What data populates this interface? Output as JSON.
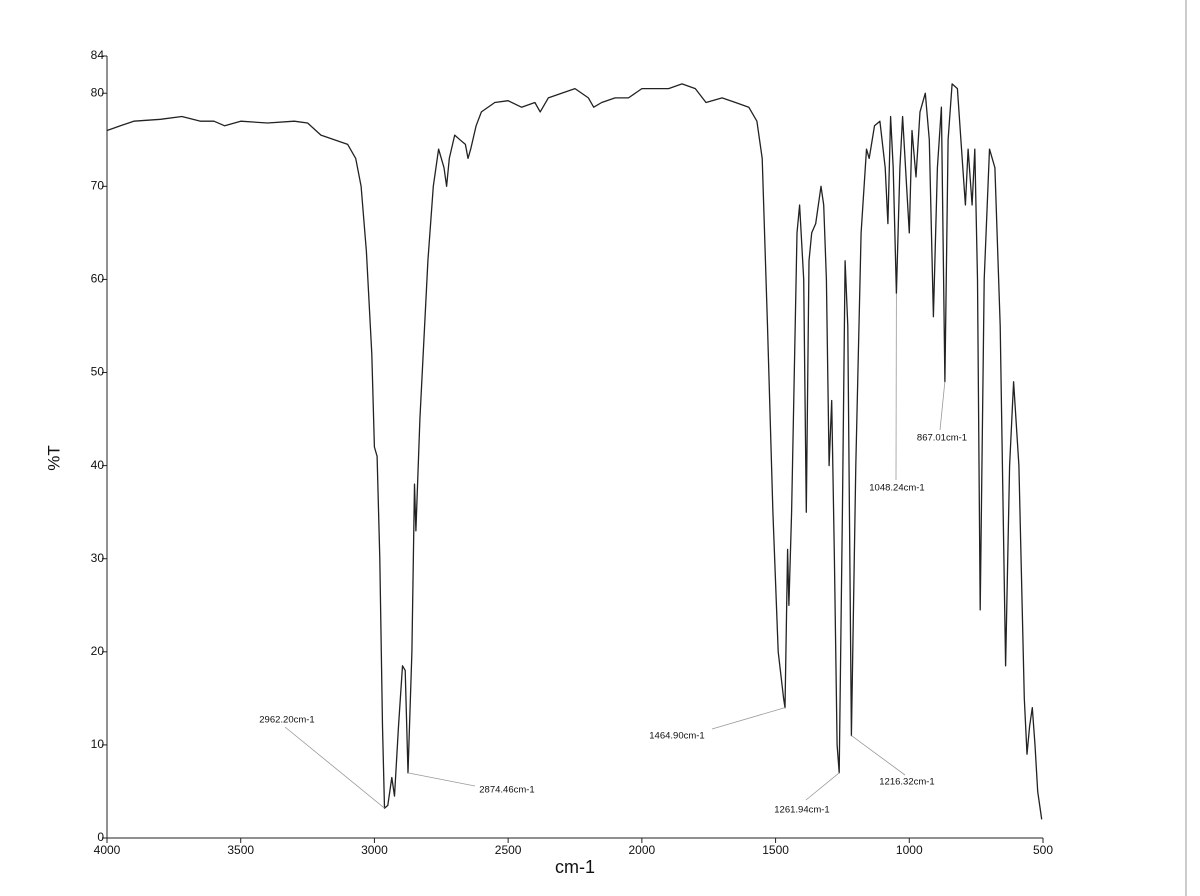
{
  "chart_data": {
    "type": "line",
    "x_label": "cm-1",
    "y_label": "%T",
    "xlim": [
      4000,
      500
    ],
    "ylim": [
      0,
      84
    ],
    "xticks": [
      4000,
      3500,
      3000,
      2500,
      2000,
      1500,
      1000,
      500
    ],
    "yticks": [
      0,
      10,
      20,
      30,
      40,
      50,
      60,
      70,
      80,
      84
    ],
    "color": "#222222",
    "x": [
      4000,
      3950,
      3900,
      3800,
      3720,
      3650,
      3600,
      3560,
      3500,
      3400,
      3300,
      3250,
      3200,
      3150,
      3100,
      3070,
      3050,
      3030,
      3010,
      3000,
      2990,
      2980,
      2970,
      2962.2,
      2950,
      2935,
      2925,
      2910,
      2895,
      2885,
      2874.46,
      2860,
      2850,
      2845,
      2830,
      2800,
      2780,
      2760,
      2740,
      2730,
      2720,
      2700,
      2680,
      2660,
      2650,
      2640,
      2620,
      2600,
      2550,
      2500,
      2450,
      2400,
      2380,
      2350,
      2300,
      2250,
      2200,
      2180,
      2150,
      2100,
      2050,
      2000,
      1950,
      1900,
      1850,
      1800,
      1760,
      1700,
      1650,
      1600,
      1570,
      1550,
      1530,
      1510,
      1490,
      1470,
      1464.9,
      1455,
      1450,
      1440,
      1420,
      1410,
      1395,
      1385,
      1375,
      1365,
      1350,
      1330,
      1320,
      1310,
      1300,
      1290,
      1280,
      1270,
      1261.94,
      1250,
      1240,
      1230,
      1216.32,
      1200,
      1180,
      1160,
      1150,
      1130,
      1110,
      1090,
      1080,
      1070,
      1060,
      1048.24,
      1035,
      1025,
      1010,
      1000,
      990,
      975,
      960,
      940,
      925,
      910,
      895,
      880,
      867.01,
      855,
      840,
      820,
      800,
      790,
      780,
      765,
      755,
      745,
      735,
      720,
      700,
      680,
      660,
      640,
      625,
      610,
      590,
      570,
      560,
      550,
      540,
      530,
      520,
      505
    ],
    "values": [
      76,
      76.5,
      77,
      77.2,
      77.5,
      77,
      77,
      76.5,
      77,
      76.8,
      77,
      76.8,
      75.5,
      75,
      74.5,
      73,
      70,
      63,
      52,
      42,
      41,
      30,
      12,
      3.2,
      3.5,
      6.5,
      4.5,
      12,
      18.5,
      18,
      7,
      20,
      38,
      33,
      45,
      62,
      70,
      74,
      72,
      70,
      73,
      75.5,
      75,
      74.5,
      73,
      74,
      76.5,
      78,
      79,
      79.2,
      78.5,
      79,
      78,
      79.5,
      80,
      80.5,
      79.5,
      78.5,
      79,
      79.5,
      79.5,
      80.5,
      80.5,
      80.5,
      81,
      80.5,
      79,
      79.5,
      79,
      78.5,
      77,
      73,
      55,
      35,
      20,
      15,
      14,
      31,
      25,
      35,
      65,
      68,
      60,
      35,
      62,
      65,
      66,
      70,
      68,
      60,
      40,
      47,
      30,
      10,
      7,
      35,
      62,
      55,
      11,
      40,
      65,
      74,
      73,
      76.5,
      77,
      72,
      66,
      77.5,
      72,
      58.5,
      72,
      77.5,
      70,
      65,
      76,
      71,
      78,
      80,
      75,
      56,
      72,
      78.5,
      49,
      75,
      81,
      80.5,
      72,
      68,
      74,
      68,
      74,
      60,
      24.5,
      60,
      74,
      72,
      55,
      18.5,
      40,
      49,
      40,
      15,
      9,
      12,
      14,
      10,
      5,
      2
    ],
    "annotations": [
      {
        "label": "2962.20cm-1",
        "x": 2962.2,
        "y": 3.2
      },
      {
        "label": "2874.46cm-1",
        "x": 2874.46,
        "y": 7
      },
      {
        "label": "1464.90cm-1",
        "x": 1464.9,
        "y": 14
      },
      {
        "label": "1261.94cm-1",
        "x": 1261.94,
        "y": 7
      },
      {
        "label": "1216.32cm-1",
        "x": 1216.32,
        "y": 11
      },
      {
        "label": "1048.24cm-1",
        "x": 1048.24,
        "y": 58.5
      },
      {
        "label": "867.01cm-1",
        "x": 867.01,
        "y": 49
      }
    ]
  }
}
